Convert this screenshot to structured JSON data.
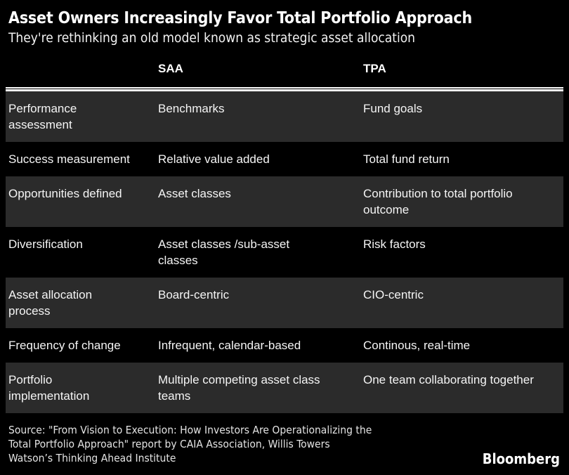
{
  "colors": {
    "background": "#000000",
    "row_shade": "#2b2b2b",
    "rule": "#ffffff",
    "title_text": "#ffffff",
    "body_text": "#f5f5f5",
    "source_text": "#e3e3e3"
  },
  "header": {
    "title": "Asset Owners Increasingly Favor Total Portfolio Approach",
    "subtitle": "They're rethinking an old model known as strategic asset allocation"
  },
  "table": {
    "columns": [
      "",
      "SAA",
      "TPA"
    ],
    "display_rows": [
      {
        "label": "Performance\nassessment",
        "saa": "Benchmarks",
        "tpa": "Fund goals"
      },
      {
        "label": "Success measurement",
        "saa": "Relative value added",
        "tpa": "Total fund return"
      },
      {
        "label": "Opportunities defined",
        "saa": "Asset classes",
        "tpa": "Contribution to total portfolio\noutcome"
      },
      {
        "label": "Diversification",
        "saa": "Asset classes /sub-asset\nclasses",
        "tpa": "Risk factors"
      },
      {
        "label": "Asset allocation\nprocess",
        "saa": "Board-centric",
        "tpa": "CIO-centric"
      },
      {
        "label": "Frequency of change",
        "saa": "Infrequent, calendar-based",
        "tpa": "Continous, real-time"
      },
      {
        "label": "Portfolio\nimplementation",
        "saa": "Multiple competing asset class\nteams",
        "tpa": "One team collaborating together"
      }
    ]
  },
  "footer": {
    "source": "Source: \"From Vision to Execution: How Investors Are Operationalizing the\nTotal Portfolio Approach\" report by CAIA Association, Willis Towers\nWatson’s Thinking Ahead Institute",
    "brand": "Bloomberg"
  },
  "chart_data": {
    "type": "table",
    "title": "Asset Owners Increasingly Favor Total Portfolio Approach",
    "subtitle": "They're rethinking an old model known as strategic asset allocation",
    "columns": [
      "",
      "SAA",
      "TPA"
    ],
    "rows": [
      [
        "Performance assessment",
        "Benchmarks",
        "Fund goals"
      ],
      [
        "Success measurement",
        "Relative value added",
        "Total fund return"
      ],
      [
        "Opportunities defined",
        "Asset classes",
        "Contribution to total portfolio outcome"
      ],
      [
        "Diversification",
        "Asset classes /sub-asset classes",
        "Risk factors"
      ],
      [
        "Asset allocation process",
        "Board-centric",
        "CIO-centric"
      ],
      [
        "Frequency of change",
        "Infrequent, calendar-based",
        "Continous, real-time"
      ],
      [
        "Portfolio implementation",
        "Multiple competing asset class teams",
        "One team collaborating together"
      ]
    ],
    "layout_hints": {
      "zebra_striping": "rows 1,3,5,7 shaded dark gray on black background",
      "header_rule": "double white rule below column headers",
      "legend": "none",
      "grid": "off"
    },
    "source": "Source: \"From Vision to Execution: How Investors Are Operationalizing the Total Portfolio Approach\" report by CAIA Association, Willis Towers Watson’s Thinking Ahead Institute",
    "brand": "Bloomberg"
  }
}
